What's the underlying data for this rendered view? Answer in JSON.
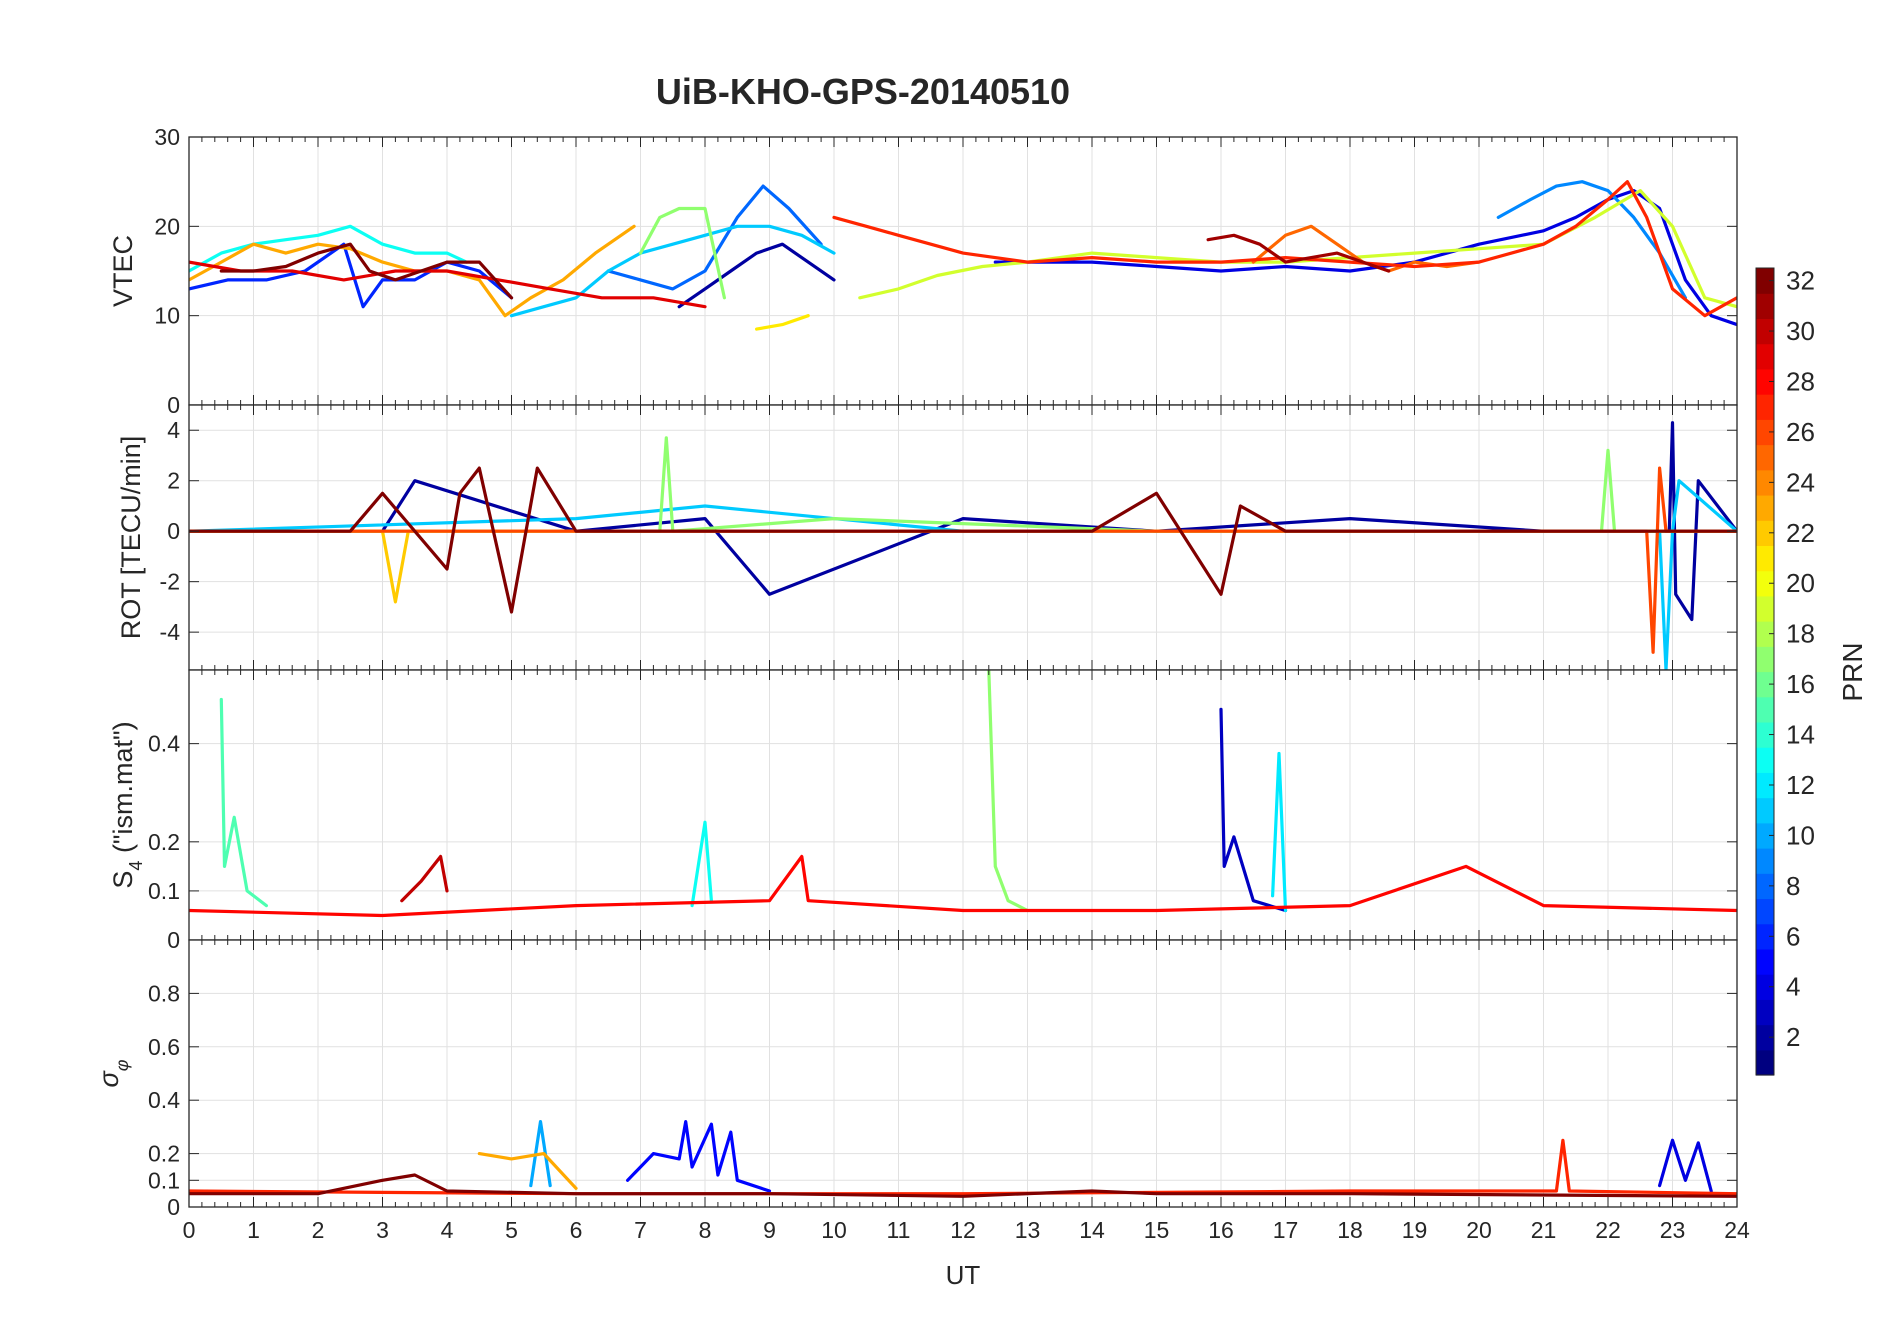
{
  "chart_data": {
    "type": "line",
    "title": "UiB-KHO-GPS-20140510",
    "xlabel": "UT",
    "xlim": [
      0,
      24
    ],
    "x_ticks": [
      0,
      1,
      2,
      3,
      4,
      5,
      6,
      7,
      8,
      9,
      10,
      11,
      12,
      13,
      14,
      15,
      16,
      17,
      18,
      19,
      20,
      21,
      22,
      23,
      24
    ],
    "x_tick_labels": [
      "0",
      "1",
      "2",
      "3",
      "4",
      "5",
      "6",
      "7",
      "8",
      "9",
      "10",
      "11",
      "12",
      "13",
      "14",
      "15",
      "16",
      "17",
      "18",
      "19",
      "20",
      "21",
      "22",
      "23",
      "24"
    ],
    "grid": true,
    "panels": [
      {
        "id": "vtec",
        "ylabel": "VTEC",
        "ylim": [
          0,
          30
        ],
        "y_ticks": [
          0,
          10,
          20,
          30
        ],
        "y_tick_labels": [
          "0",
          "10",
          "20",
          "30"
        ],
        "series": [
          {
            "name": "PRN 2",
            "prn": 2,
            "x": [
              7.6,
              8.0,
              8.4,
              8.8,
              9.2,
              9.6,
              10.0
            ],
            "y": [
              11,
              13,
              15,
              17,
              18,
              16,
              14
            ]
          },
          {
            "name": "PRN 4",
            "prn": 4,
            "x": [
              12.5,
              14,
              15,
              16,
              17,
              18,
              19,
              20,
              21,
              21.5,
              22,
              22.4,
              22.8,
              23.2,
              23.6,
              24
            ],
            "y": [
              16,
              16,
              15.5,
              15,
              15.5,
              15,
              16,
              18,
              19.5,
              21,
              23,
              24,
              22,
              14,
              10,
              9
            ]
          },
          {
            "name": "PRN 6",
            "prn": 6,
            "x": [
              0,
              0.6,
              1.2,
              1.8,
              2.4,
              2.7,
              3.0,
              3.5,
              4.0,
              4.5,
              5.0
            ],
            "y": [
              13,
              14,
              14,
              15,
              18,
              11,
              14,
              14,
              16,
              15,
              12
            ]
          },
          {
            "name": "PRN 8",
            "prn": 8,
            "x": [
              6.5,
              7.0,
              7.5,
              8.0,
              8.5,
              8.9,
              9.3,
              9.8
            ],
            "y": [
              15,
              14,
              13,
              15,
              21,
              24.5,
              22,
              18
            ]
          },
          {
            "name": "PRN 9",
            "prn": 9,
            "x": [
              20.3,
              20.8,
              21.2,
              21.6,
              22.0,
              22.4,
              22.8,
              23.2
            ],
            "y": [
              21,
              23,
              24.5,
              25,
              24,
              21,
              17,
              12
            ]
          },
          {
            "name": "PRN 11",
            "prn": 11,
            "x": [
              5.0,
              5.5,
              6.0,
              6.5,
              7.0,
              7.5,
              8.0,
              8.5,
              9.0,
              9.5,
              10.0
            ],
            "y": [
              10,
              11,
              12,
              15,
              17,
              18,
              19,
              20,
              20,
              19,
              17
            ]
          },
          {
            "name": "PRN 13",
            "prn": 13,
            "x": [
              0,
              0.5,
              1.0,
              1.5,
              2.0,
              2.5,
              3.0,
              3.5,
              4.0,
              4.3
            ],
            "y": [
              15,
              17,
              18,
              18.5,
              19,
              20,
              18,
              17,
              17,
              16
            ]
          },
          {
            "name": "PRN 17",
            "prn": 17,
            "x": [
              7.0,
              7.3,
              7.6,
              8.0,
              8.3
            ],
            "y": [
              17,
              21,
              22,
              22,
              12
            ]
          },
          {
            "name": "PRN 19",
            "prn": 19,
            "x": [
              10.4,
              11.0,
              11.6,
              12.3,
              13.0,
              14.0,
              15.0,
              16.0,
              17.0,
              18.0,
              19.0,
              20.0,
              21.0,
              21.8,
              22.5,
              23.0,
              23.5,
              24.0
            ],
            "y": [
              12,
              13,
              14.5,
              15.5,
              16,
              17,
              16.5,
              16,
              16,
              16.5,
              17,
              17.5,
              18,
              21,
              24,
              20,
              12,
              11
            ]
          },
          {
            "name": "PRN 21",
            "prn": 21,
            "x": [
              8.8,
              9.2,
              9.6
            ],
            "y": [
              8.5,
              9,
              10
            ]
          },
          {
            "name": "PRN 23",
            "prn": 23,
            "x": [
              0,
              0.5,
              1.0,
              1.5,
              2.0,
              2.5,
              3.0,
              3.5,
              4.0,
              4.5,
              4.9,
              5.3,
              5.8,
              6.3,
              6.9
            ],
            "y": [
              14,
              16,
              18,
              17,
              18,
              17.5,
              16,
              15,
              15,
              14,
              10,
              12,
              14,
              17,
              20
            ]
          },
          {
            "name": "PRN 25",
            "prn": 25,
            "x": [
              16.5,
              17.0,
              17.4,
              17.8,
              18.2,
              18.6,
              19.0,
              19.5,
              20.0
            ],
            "y": [
              16,
              19,
              20,
              18,
              16,
              15,
              16,
              15.5,
              16
            ]
          },
          {
            "name": "PRN 27",
            "prn": 27,
            "x": [
              10.0,
              10.5,
              11.0,
              11.5,
              12.0,
              13.0,
              14.0,
              15.0,
              16.0,
              17.0,
              18.0,
              19.0,
              20.0,
              21.0,
              21.5,
              22.0,
              22.3,
              22.6,
              23.0,
              23.5,
              24.0
            ],
            "y": [
              21,
              20,
              19,
              18,
              17,
              16,
              16.5,
              16,
              16,
              16.5,
              16,
              15.5,
              16,
              18,
              20,
              23,
              25,
              21,
              13,
              10,
              12
            ]
          },
          {
            "name": "PRN 29",
            "prn": 29,
            "x": [
              0,
              0.8,
              1.6,
              2.4,
              3.2,
              4.0,
              4.8,
              5.6,
              6.4,
              7.2,
              8.0
            ],
            "y": [
              16,
              15,
              15,
              14,
              15,
              15,
              14,
              13,
              12,
              12,
              11
            ]
          },
          {
            "name": "PRN 31",
            "prn": 31,
            "x": [
              15.8,
              16.2,
              16.6,
              17.0,
              17.4,
              17.8,
              18.2,
              18.6
            ],
            "y": [
              18.5,
              19,
              18,
              16,
              16.5,
              17,
              16,
              15
            ]
          },
          {
            "name": "PRN 32",
            "prn": 32,
            "x": [
              0.5,
              1.0,
              1.5,
              2.0,
              2.5,
              2.8,
              3.2,
              3.6,
              4.0,
              4.5,
              5.0
            ],
            "y": [
              15,
              15,
              15.5,
              17,
              18,
              15,
              14,
              15,
              16,
              16,
              12
            ]
          }
        ]
      },
      {
        "id": "rot",
        "ylabel": "ROT [TECU/min]",
        "ylim": [
          -5.5,
          5
        ],
        "y_ticks": [
          -4,
          -2,
          0,
          2,
          4
        ],
        "y_tick_labels": [
          "-4",
          "-2",
          "0",
          "2",
          "4"
        ],
        "series": [
          {
            "name": "PRN 2",
            "prn": 2,
            "x": [
              0,
              3,
              3.5,
              6,
              8,
              9,
              12,
              15,
              18,
              21,
              22.95,
              23.0,
              23.05,
              23.3,
              23.4,
              24
            ],
            "y": [
              0,
              0,
              2.0,
              0,
              0.5,
              -2.5,
              0.5,
              0,
              0.5,
              0,
              0,
              4.3,
              -2.5,
              -3.5,
              2.0,
              0
            ]
          },
          {
            "name": "PRN 11",
            "prn": 11,
            "x": [
              0,
              6,
              8,
              12,
              18,
              22.8,
              22.9,
              23.0,
              23.1,
              24
            ],
            "y": [
              0,
              0.5,
              1.0,
              0,
              0,
              0,
              -5.5,
              0,
              2.0,
              0
            ]
          },
          {
            "name": "PRN 17",
            "prn": 17,
            "x": [
              0,
              5,
              7.3,
              7.4,
              7.5,
              10,
              15,
              21.9,
              22.0,
              22.1,
              24
            ],
            "y": [
              0,
              0,
              0,
              3.7,
              0,
              0.5,
              0,
              0,
              3.2,
              0,
              0
            ]
          },
          {
            "name": "PRN 22",
            "prn": 22,
            "x": [
              0,
              3.0,
              3.2,
              3.4,
              6,
              12,
              18,
              24
            ],
            "y": [
              0,
              0,
              -2.8,
              0,
              0,
              0,
              0,
              0
            ]
          },
          {
            "name": "PRN 26",
            "prn": 26,
            "x": [
              0,
              12,
              18,
              22.6,
              22.7,
              22.8,
              22.9,
              24
            ],
            "y": [
              0,
              0,
              0,
              0,
              -4.8,
              2.5,
              0,
              0
            ]
          },
          {
            "name": "PRN 32",
            "prn": 32,
            "x": [
              0,
              2.5,
              3.0,
              4.0,
              4.2,
              4.5,
              5.0,
              5.4,
              6,
              14,
              15,
              16,
              16.3,
              17,
              24
            ],
            "y": [
              0,
              0,
              1.5,
              -1.5,
              1.5,
              2.5,
              -3.2,
              2.5,
              0,
              0,
              1.5,
              -2.5,
              1.0,
              0,
              0
            ]
          }
        ]
      },
      {
        "id": "s4",
        "ylabel": "S4 (\"ism.mat\")",
        "ylabel_main": "S",
        "ylabel_sub": "4",
        "ylabel_rest": " (\"ism.mat\")",
        "ylim": [
          0,
          0.55
        ],
        "y_ticks": [
          0,
          0.1,
          0.2,
          0.4
        ],
        "y_tick_labels": [
          "0",
          "0.1",
          "0.2",
          "0.4"
        ],
        "series": [
          {
            "name": "PRN 3",
            "prn": 3,
            "x": [
              16.0,
              16.05,
              16.2,
              16.5,
              17.0
            ],
            "y": [
              0.47,
              0.15,
              0.21,
              0.08,
              0.06
            ]
          },
          {
            "name": "PRN 12",
            "prn": 12,
            "x": [
              16.8,
              16.9,
              17.0
            ],
            "y": [
              0.09,
              0.38,
              0.06
            ]
          },
          {
            "name": "PRN 15",
            "prn": 15,
            "x": [
              0.5,
              0.55,
              0.7,
              0.9,
              1.2
            ],
            "y": [
              0.49,
              0.15,
              0.25,
              0.1,
              0.07
            ]
          },
          {
            "name": "PRN 17",
            "prn": 17,
            "x": [
              12.4,
              12.5,
              12.7,
              13.0
            ],
            "y": [
              0.55,
              0.15,
              0.08,
              0.06
            ]
          },
          {
            "name": "PRN 13",
            "prn": 13,
            "x": [
              7.8,
              8.0,
              8.1
            ],
            "y": [
              0.07,
              0.24,
              0.08
            ]
          },
          {
            "name": "PRN 30",
            "prn": 30,
            "x": [
              3.3,
              3.6,
              3.9,
              4.0
            ],
            "y": [
              0.08,
              0.12,
              0.17,
              0.1
            ]
          },
          {
            "name": "PRN 28",
            "prn": 28,
            "x": [
              0,
              3,
              6,
              9,
              9.5,
              9.6,
              12,
              15,
              18,
              19.8,
              21,
              24
            ],
            "y": [
              0.06,
              0.05,
              0.07,
              0.08,
              0.17,
              0.08,
              0.06,
              0.06,
              0.07,
              0.15,
              0.07,
              0.06
            ]
          }
        ]
      },
      {
        "id": "sigma",
        "ylabel": "σ_φ",
        "ylabel_main": "σ",
        "ylabel_sub": "φ",
        "ylim": [
          0,
          1
        ],
        "y_ticks": [
          0,
          0.1,
          0.2,
          0.4,
          0.6,
          0.8
        ],
        "y_tick_labels": [
          "0",
          "0.1",
          "0.2",
          "0.4",
          "0.6",
          "0.8"
        ],
        "series": [
          {
            "name": "PRN 5",
            "prn": 5,
            "x": [
              6.8,
              7.2,
              7.6,
              7.7,
              7.8,
              8.1,
              8.2,
              8.4,
              8.5,
              9.0
            ],
            "y": [
              0.1,
              0.2,
              0.18,
              0.32,
              0.15,
              0.31,
              0.12,
              0.28,
              0.1,
              0.06
            ]
          },
          {
            "name": "PRN 10",
            "prn": 10,
            "x": [
              5.3,
              5.45,
              5.6
            ],
            "y": [
              0.08,
              0.32,
              0.08
            ]
          },
          {
            "name": "PRN 23",
            "prn": 23,
            "x": [
              4.5,
              5.0,
              5.5,
              6.0
            ],
            "y": [
              0.2,
              0.18,
              0.2,
              0.07
            ]
          },
          {
            "name": "PRN 4",
            "prn": 4,
            "x": [
              22.8,
              23.0,
              23.2,
              23.4,
              23.6
            ],
            "y": [
              0.08,
              0.25,
              0.1,
              0.24,
              0.06
            ]
          },
          {
            "name": "PRN 27",
            "prn": 27,
            "x": [
              0,
              6,
              12,
              18,
              21.2,
              21.3,
              21.4,
              24
            ],
            "y": [
              0.06,
              0.05,
              0.05,
              0.06,
              0.06,
              0.25,
              0.06,
              0.05
            ]
          },
          {
            "name": "PRN 32",
            "prn": 32,
            "x": [
              0,
              2,
              3,
              3.5,
              4,
              6,
              9,
              12,
              14,
              15,
              18,
              24
            ],
            "y": [
              0.05,
              0.05,
              0.1,
              0.12,
              0.06,
              0.05,
              0.05,
              0.04,
              0.06,
              0.05,
              0.05,
              0.04
            ]
          }
        ]
      }
    ],
    "colorbar": {
      "label": "PRN",
      "range": [
        1,
        32
      ],
      "colormap": "jet",
      "ticks": [
        2,
        4,
        6,
        8,
        10,
        12,
        14,
        16,
        18,
        20,
        22,
        24,
        26,
        28,
        30,
        32
      ],
      "tick_labels": [
        "2",
        "4",
        "6",
        "8",
        "10",
        "12",
        "14",
        "16",
        "18",
        "20",
        "22",
        "24",
        "26",
        "28",
        "30",
        "32"
      ]
    }
  },
  "colors": {
    "axis": "#262626",
    "grid": "#e1e1e1",
    "background": "#ffffff"
  }
}
